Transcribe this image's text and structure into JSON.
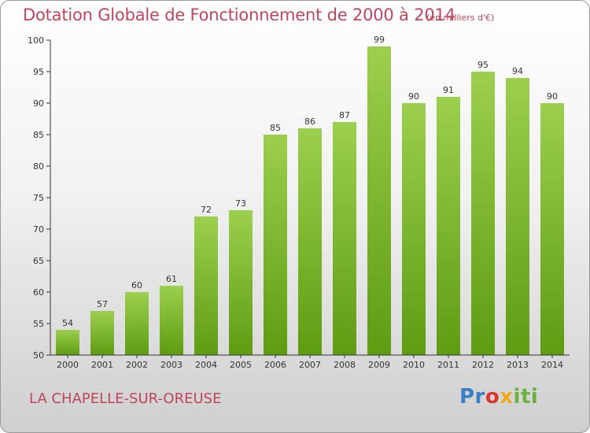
{
  "header": {
    "title": "Dotation Globale de Fonctionnement de 2000 à 2014",
    "unit": "(en milliers d'€)"
  },
  "footer": {
    "commune": "LA CHAPELLE-SUR-OREUSE",
    "logo": "Proxiti"
  },
  "colors": {
    "title": "#c0455a",
    "bar_top": "#9ccf4e",
    "bar_bottom": "#5e9c12",
    "axis": "#333333"
  },
  "chart_data": {
    "type": "bar",
    "title": "Dotation Globale de Fonctionnement de 2000 à 2014",
    "unit": "(en milliers d'€)",
    "categories": [
      "2000",
      "2001",
      "2002",
      "2003",
      "2004",
      "2005",
      "2006",
      "2007",
      "2008",
      "2009",
      "2010",
      "2011",
      "2012",
      "2013",
      "2014"
    ],
    "values": [
      54,
      57,
      60,
      61,
      72,
      73,
      85,
      86,
      87,
      99,
      90,
      91,
      95,
      94,
      90
    ],
    "ylim": [
      50,
      100
    ],
    "yticks": [
      50,
      55,
      60,
      65,
      70,
      75,
      80,
      85,
      90,
      95,
      100
    ],
    "xlabel": "",
    "ylabel": "",
    "grid": false,
    "legend": "none"
  }
}
